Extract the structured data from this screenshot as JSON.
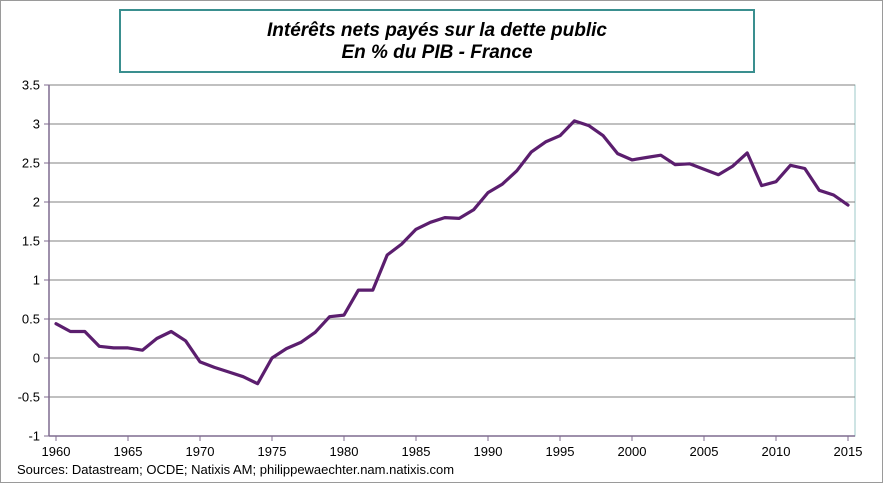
{
  "chart_data": {
    "type": "line",
    "title": "Intérêts nets payés sur la dette public",
    "subtitle": "En % du PIB - France",
    "xlabel": "",
    "ylabel": "",
    "xlim": [
      1960,
      2015
    ],
    "ylim": [
      -1,
      3.5
    ],
    "xticks": [
      1960,
      1965,
      1970,
      1975,
      1980,
      1985,
      1990,
      1995,
      2000,
      2005,
      2010,
      2015
    ],
    "yticks": [
      3.5,
      3,
      2.5,
      2,
      1.5,
      1,
      0.5,
      0,
      -0.5,
      -1
    ],
    "ytick_labels": [
      "3.5",
      "3",
      "2.5",
      "2",
      "1.5",
      "1",
      "0.5",
      "0",
      "-0.5",
      "-1"
    ],
    "grid": true,
    "colors": {
      "line": "#5b1e6e",
      "grid": "#808080",
      "axis": "#7f6b8f",
      "plot_border": "#9ec9c9"
    },
    "series": [
      {
        "name": "Intérêts nets payés",
        "x": [
          1960,
          1961,
          1962,
          1963,
          1964,
          1965,
          1966,
          1967,
          1968,
          1969,
          1970,
          1971,
          1972,
          1973,
          1974,
          1975,
          1976,
          1977,
          1978,
          1979,
          1980,
          1981,
          1982,
          1983,
          1984,
          1985,
          1986,
          1987,
          1988,
          1989,
          1990,
          1991,
          1992,
          1993,
          1994,
          1995,
          1996,
          1997,
          1998,
          1999,
          2000,
          2001,
          2002,
          2003,
          2004,
          2005,
          2006,
          2007,
          2008,
          2009,
          2010,
          2011,
          2012,
          2013,
          2014,
          2015
        ],
        "values": [
          0.44,
          0.34,
          0.34,
          0.15,
          0.13,
          0.13,
          0.1,
          0.25,
          0.34,
          0.22,
          -0.05,
          -0.12,
          -0.18,
          -0.24,
          -0.33,
          0.0,
          0.12,
          0.2,
          0.33,
          0.53,
          0.55,
          0.87,
          0.87,
          1.32,
          1.46,
          1.65,
          1.74,
          1.8,
          1.79,
          1.9,
          2.12,
          2.23,
          2.4,
          2.64,
          2.77,
          2.85,
          3.04,
          2.98,
          2.85,
          2.62,
          2.54,
          2.57,
          2.6,
          2.48,
          2.49,
          2.42,
          2.35,
          2.46,
          2.63,
          2.21,
          2.26,
          2.47,
          2.43,
          2.15,
          2.09,
          1.96
        ]
      }
    ]
  },
  "source": "Sources: Datastream; OCDE; Natixis AM; philippewaechter.nam.natixis.com"
}
